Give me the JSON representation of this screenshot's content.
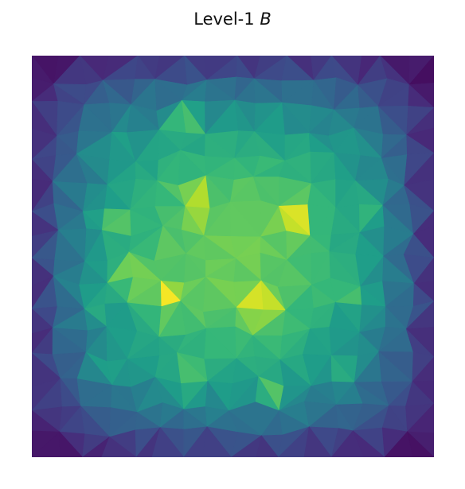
{
  "chart_data": {
    "type": "heatmap",
    "title": "Level-1",
    "title_symbol": "B",
    "colormap": "viridis",
    "axes_visible": false,
    "grid": false,
    "legend": "none",
    "colors": {
      "viridis": [
        "#440154",
        "#482878",
        "#3e4989",
        "#31688e",
        "#26828e",
        "#1f9e89",
        "#35b779",
        "#6ece58",
        "#b5de2b",
        "#fde725"
      ]
    },
    "mesh": {
      "nx": 16,
      "ny": 16,
      "domain": [
        0,
        1
      ],
      "peaks": [
        {
          "x": 0.2,
          "y": 0.2
        },
        {
          "x": 0.4,
          "y": 0.37
        },
        {
          "x": 0.65,
          "y": 0.4
        },
        {
          "x": 0.81,
          "y": 0.2
        },
        {
          "x": 0.19,
          "y": 0.42
        },
        {
          "x": 0.33,
          "y": 0.6
        },
        {
          "x": 0.57,
          "y": 0.62
        },
        {
          "x": 0.81,
          "y": 0.58
        },
        {
          "x": 0.14,
          "y": 0.62
        },
        {
          "x": 0.18,
          "y": 0.8
        },
        {
          "x": 0.4,
          "y": 0.81
        },
        {
          "x": 0.6,
          "y": 0.84
        },
        {
          "x": 0.79,
          "y": 0.8
        },
        {
          "x": 0.38,
          "y": 0.16
        },
        {
          "x": 0.85,
          "y": 0.38
        },
        {
          "x": 0.25,
          "y": 0.55
        }
      ]
    }
  }
}
